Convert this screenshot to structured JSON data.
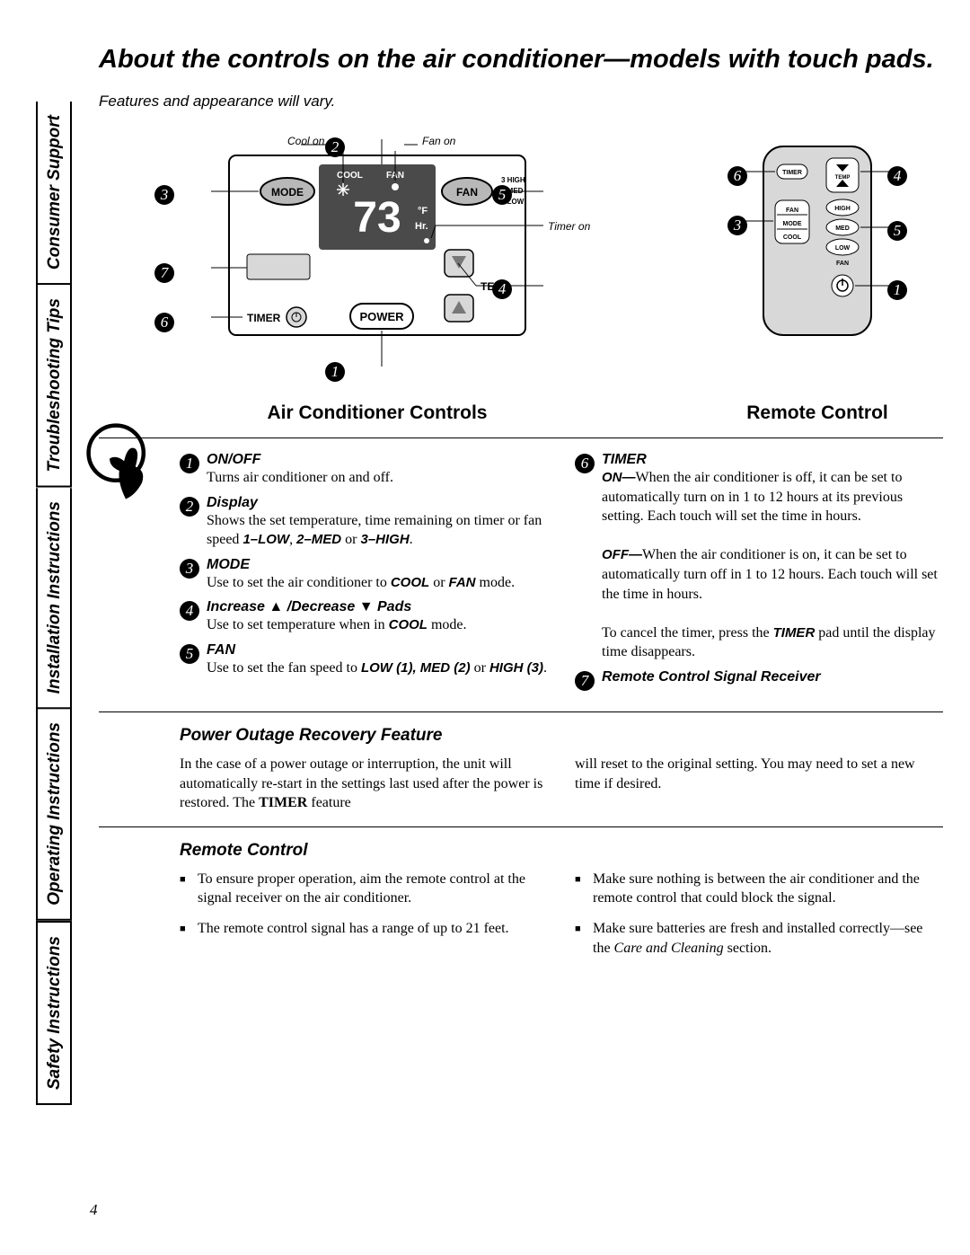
{
  "page_number": "4",
  "title": "About the controls on the air conditioner—models with touch pads.",
  "subtitle": "Features and appearance will vary.",
  "sidebar": [
    "Safety Instructions",
    "Operating Instructions",
    "Installation Instructions",
    "Troubleshooting Tips",
    "Consumer Support"
  ],
  "ac_panel": {
    "title": "Air Conditioner Controls",
    "display_value": "73",
    "labels": {
      "cool_on": "Cool on",
      "fan_on": "Fan on",
      "timer_on": "Timer on",
      "cool": "COOL",
      "fan_ind": "FAN",
      "degF": "°F",
      "hr": "Hr.",
      "mode": "MODE",
      "fan": "FAN",
      "temp": "TEMP",
      "timer": "TIMER",
      "power": "POWER",
      "speed3": "3 HIGH",
      "speed2": "2 MED",
      "speed1": "1 LOW"
    },
    "callouts": {
      "c1": "1",
      "c2": "2",
      "c3": "3",
      "c4": "4",
      "c5": "5",
      "c6": "6",
      "c7": "7"
    }
  },
  "remote": {
    "title": "Remote Control",
    "labels": {
      "timer": "TIMER",
      "temp": "TEMP",
      "fan": "FAN",
      "mode": "MODE",
      "cool": "COOL",
      "high": "HIGH",
      "med": "MED",
      "low": "LOW",
      "fan_speed": "FAN"
    },
    "callouts": {
      "c1": "1",
      "c3": "3",
      "c4": "4",
      "c5": "5",
      "c6": "6"
    }
  },
  "features_left": [
    {
      "num": "1",
      "title": "ON/OFF",
      "body": "Turns air conditioner on and off."
    },
    {
      "num": "2",
      "title": "Display",
      "body": "Shows the set temperature, time remaining on timer or fan speed <b>1–LOW</b>, <b>2–MED</b> or <b>3–HIGH</b>."
    },
    {
      "num": "3",
      "title": "MODE",
      "body": "Use to set the air conditioner to <b>COOL</b> or <b>FAN</b> mode."
    },
    {
      "num": "4",
      "title": "Increase ▲ /Decrease ▼ Pads",
      "body": "Use to set temperature when in <b>COOL</b> mode."
    },
    {
      "num": "5",
      "title": "FAN",
      "body": "Use to set the fan speed to <b>LOW (1), MED (2)</b> or <b>HIGH (3)</b>."
    }
  ],
  "features_right": [
    {
      "num": "6",
      "title": "TIMER",
      "body": "<b>ON—</b>When the air conditioner is off, it can be set to automatically turn on in 1 to 12 hours at its previous setting. Each touch will set the time in hours.<br><br><b>OFF—</b>When the air conditioner is on, it can be set to automatically turn off in 1 to 12 hours. Each touch will set the time in hours.<br><br>To cancel the timer, press the <b>TIMER</b> pad until the display time disappears."
    },
    {
      "num": "7",
      "title": "Remote Control Signal Receiver",
      "body": ""
    }
  ],
  "power_outage": {
    "title": "Power Outage Recovery Feature",
    "col1": "In the case of a power outage or interruption, the unit will automatically re-start in the settings last used after the power is restored. The <b>TIMER</b> feature",
    "col2": "will reset to the original setting. You may need to set a new time if desired."
  },
  "remote_section": {
    "title": "Remote Control",
    "col1": [
      "To ensure proper operation, aim the remote control at the signal receiver on the air conditioner.",
      "The remote control signal has a range of up to 21 feet."
    ],
    "col2": [
      "Make sure nothing is between the air conditioner and the remote control that could block the signal.",
      "Make sure batteries are fresh and installed correctly—see the <i>Care and Cleaning</i> section."
    ]
  },
  "colors": {
    "black": "#000000",
    "white": "#ffffff",
    "gray": "#b8b8b8",
    "darkgray": "#4a4a4a",
    "lightgray": "#d8d8d8"
  }
}
